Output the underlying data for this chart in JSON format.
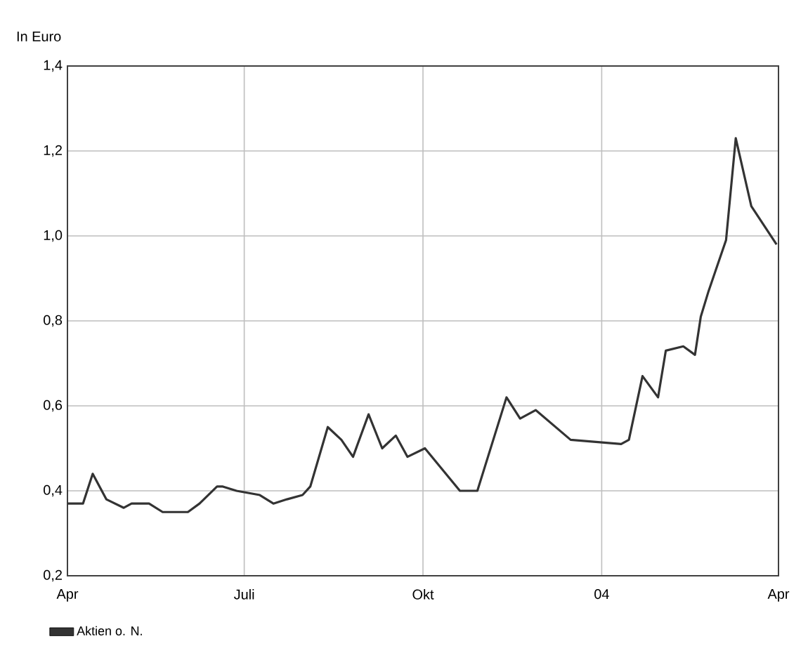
{
  "chart_data": {
    "type": "line",
    "ylabel": "In Euro",
    "xlim": [
      "2003-04-01",
      "2004-04-01"
    ],
    "xticks": [
      {
        "value": "2003-04-01",
        "label": "Apr"
      },
      {
        "value": "2003-07-01",
        "label": "Juli"
      },
      {
        "value": "2003-10-01",
        "label": "Okt"
      },
      {
        "value": "2004-01-01",
        "label": "04"
      },
      {
        "value": "2004-04-01",
        "label": "Apr"
      }
    ],
    "ylim": [
      0.2,
      1.4
    ],
    "yticks": [
      {
        "value": 0.2,
        "label": "0,2"
      },
      {
        "value": 0.4,
        "label": "0,4"
      },
      {
        "value": 0.6,
        "label": "0,6"
      },
      {
        "value": 0.8,
        "label": "0,8"
      },
      {
        "value": 1.0,
        "label": "1,0"
      },
      {
        "value": 1.2,
        "label": "1,2"
      },
      {
        "value": 1.4,
        "label": "1,4"
      }
    ],
    "grid": true,
    "legend": "bottom left",
    "line_style": "solid",
    "marker": "none",
    "series": [
      {
        "name": "Aktien o. N.",
        "color": "#333333",
        "x": [
          "2003-04-01",
          "2003-04-09",
          "2003-04-14",
          "2003-04-21",
          "2003-04-30",
          "2003-05-04",
          "2003-05-13",
          "2003-05-20",
          "2003-06-02",
          "2003-06-08",
          "2003-06-17",
          "2003-06-20",
          "2003-06-27",
          "2003-07-09",
          "2003-07-16",
          "2003-07-23",
          "2003-07-31",
          "2003-08-04",
          "2003-08-13",
          "2003-08-20",
          "2003-08-26",
          "2003-09-03",
          "2003-09-10",
          "2003-09-17",
          "2003-09-23",
          "2003-10-02",
          "2003-10-20",
          "2003-10-29",
          "2003-11-13",
          "2003-11-20",
          "2003-11-28",
          "2003-12-16",
          "2004-01-11",
          "2004-01-15",
          "2004-01-22",
          "2004-01-30",
          "2004-02-03",
          "2004-02-12",
          "2004-02-18",
          "2004-02-21",
          "2004-02-25",
          "2004-03-05",
          "2004-03-10",
          "2004-03-18",
          "2004-03-31"
        ],
        "values": [
          0.37,
          0.37,
          0.44,
          0.38,
          0.36,
          0.37,
          0.37,
          0.35,
          0.35,
          0.37,
          0.41,
          0.41,
          0.4,
          0.39,
          0.37,
          0.38,
          0.39,
          0.41,
          0.55,
          0.52,
          0.48,
          0.58,
          0.5,
          0.53,
          0.48,
          0.5,
          0.4,
          0.4,
          0.62,
          0.57,
          0.59,
          0.52,
          0.51,
          0.52,
          0.67,
          0.62,
          0.73,
          0.74,
          0.72,
          0.81,
          0.87,
          0.99,
          1.23,
          1.07,
          0.98
        ]
      }
    ]
  }
}
